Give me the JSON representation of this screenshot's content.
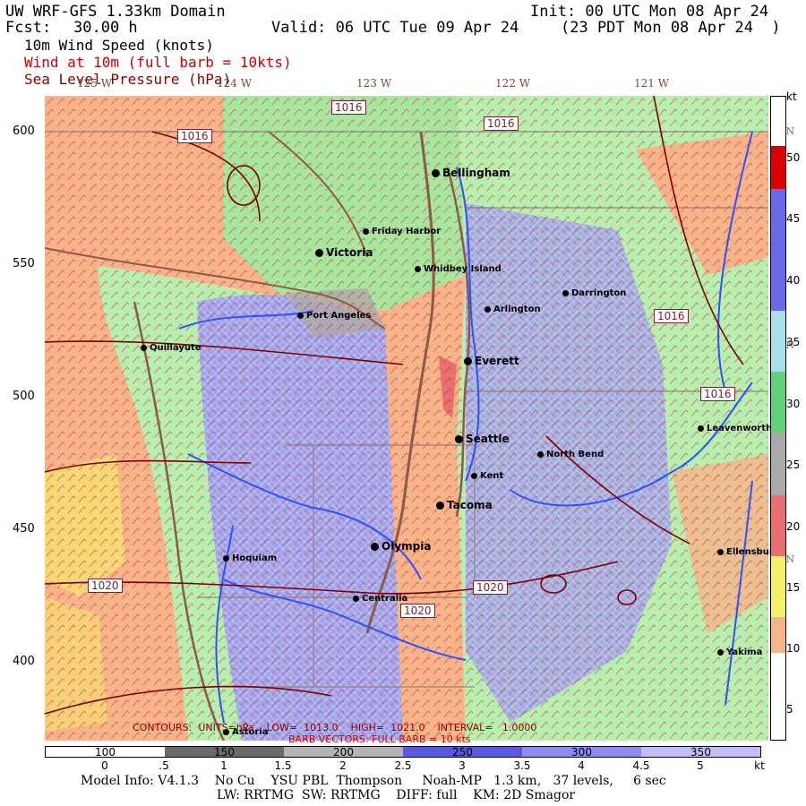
{
  "header": {
    "model_title": "UW WRF-GFS 1.33km Domain",
    "init": "Init: 00 UTC Mon 08 Apr 24",
    "fcst_label": "Fcst:",
    "fcst_value": "30.00 h",
    "valid": "Valid: 06 UTC Tue 09 Apr 24",
    "local_time": "(23 PDT Mon 08 Apr 24  )"
  },
  "layers": {
    "wind_speed": "10m Wind Speed (knots)",
    "wind_barbs": "Wind at 10m (full barb = 10kts)",
    "slp": "Sea Level Pressure (hPa)"
  },
  "axes": {
    "y_ticks": [
      "600",
      "550",
      "500",
      "450",
      "400"
    ],
    "lon_labels": [
      "123 W",
      "122 W",
      "121 W",
      "125 W",
      "124 W"
    ],
    "lat_labels": [
      "49 N",
      "48 N",
      "47 N"
    ]
  },
  "cities": [
    {
      "name": "Bellingham",
      "big": true
    },
    {
      "name": "Friday Harbor",
      "big": false
    },
    {
      "name": "Victoria",
      "big": true
    },
    {
      "name": "Whidbey Island",
      "big": false
    },
    {
      "name": "Darrington",
      "big": false
    },
    {
      "name": "Port Angeles",
      "big": false
    },
    {
      "name": "Arlington",
      "big": false
    },
    {
      "name": "Quillayute",
      "big": false
    },
    {
      "name": "Everett",
      "big": true
    },
    {
      "name": "Seattle",
      "big": true
    },
    {
      "name": "North Bend",
      "big": false
    },
    {
      "name": "Leavenworth",
      "big": false
    },
    {
      "name": "Kent",
      "big": false
    },
    {
      "name": "Tacoma",
      "big": true
    },
    {
      "name": "Olympia",
      "big": true
    },
    {
      "name": "Hoquiam",
      "big": false
    },
    {
      "name": "Ellensburg",
      "big": false
    },
    {
      "name": "Centralia",
      "big": false
    },
    {
      "name": "Yakima",
      "big": false
    },
    {
      "name": "Astoria",
      "big": false
    }
  ],
  "isobar_labels": [
    "1016",
    "1016",
    "1016",
    "1016",
    "1016",
    "1020",
    "1020",
    "1020"
  ],
  "colorbar": {
    "unit": "kt",
    "labels": [
      "50",
      "45",
      "40",
      "35",
      "30",
      "25",
      "20",
      "15",
      "10",
      "5"
    ],
    "colors": [
      "#ffffff",
      "#dd0000",
      "#6a6ae6",
      "#6a6ae6",
      "#a8e0e8",
      "#62d27a",
      "#aaaaaa",
      "#e87070",
      "#f5f06a",
      "#f5b48a",
      "#b6f0b0",
      "#c6c6f2",
      "#ffffff"
    ]
  },
  "terrain_bar": {
    "unit": "kt",
    "labels": [
      "100",
      "150",
      "200",
      "250",
      "300",
      "350"
    ],
    "ticks": [
      "0",
      ".5",
      "1",
      "1.5",
      "2",
      "2.5",
      "3",
      "3.5",
      "4",
      "4.5",
      "5"
    ]
  },
  "notes": {
    "contours": "CONTOURS:  UNITS=hPa    LOW=  1013.0    HIGH=  1021.0    INTERVAL=   1.0000",
    "barbs": "BARB VECTORS: FULL BARB = 10 kts"
  },
  "footer": {
    "line1": "Model Info: V4.1.3    No Cu    YSU PBL  Thompson     Noah-MP   1.3 km,   37 levels,     6 sec",
    "line2": "LW: RRTMG  SW: RRTMG    DIFF: full    KM: 2D Smagor"
  }
}
